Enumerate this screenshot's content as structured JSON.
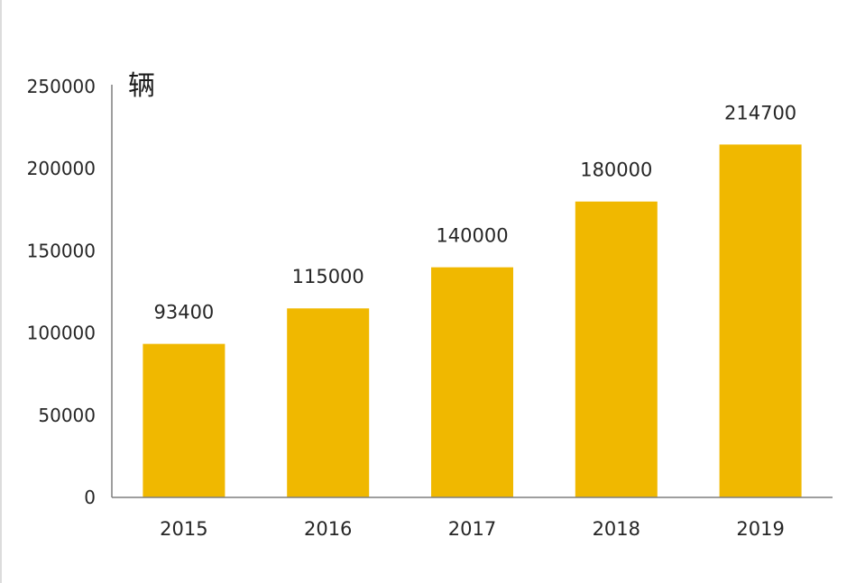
{
  "chart_data": {
    "type": "bar",
    "categories": [
      "2015",
      "2016",
      "2017",
      "2018",
      "2019"
    ],
    "values": [
      93400,
      115000,
      140000,
      180000,
      214700
    ],
    "data_labels": [
      "93400",
      "115000",
      "140000",
      "180000",
      "214700"
    ],
    "unit_label": "辆",
    "ylim": [
      0,
      250000
    ],
    "y_ticks": [
      0,
      50000,
      100000,
      150000,
      200000,
      250000
    ],
    "y_tick_labels": [
      "0",
      "50000",
      "100000",
      "150000",
      "200000",
      "250000"
    ],
    "grid": false,
    "legend": "none",
    "colors": {
      "bar": "#f0b800",
      "axis": "#7f7f7f",
      "text": "#262626"
    }
  }
}
